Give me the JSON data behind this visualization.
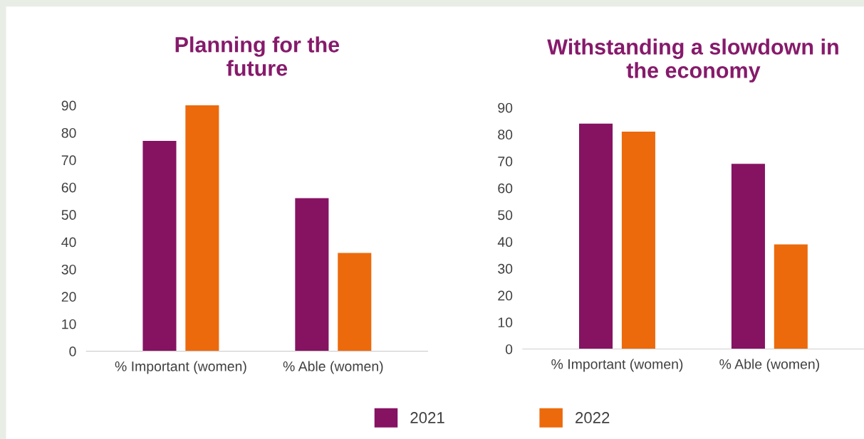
{
  "chart_data": [
    {
      "type": "bar",
      "title": "Planning for the\nfuture",
      "categories": [
        "% Important (women)",
        "% Able (women)"
      ],
      "series": [
        {
          "name": "2021",
          "color": "#861262",
          "values": [
            77,
            56
          ]
        },
        {
          "name": "2022",
          "color": "#ec6a0c",
          "values": [
            90,
            36
          ]
        }
      ],
      "ylim": [
        0,
        90
      ],
      "yticks": [
        0,
        10,
        20,
        30,
        40,
        50,
        60,
        70,
        80,
        90
      ],
      "grid": false,
      "legend": "bottom"
    },
    {
      "type": "bar",
      "title": "Withstanding a slowdown in\nthe economy",
      "categories": [
        "% Important (women)",
        "% Able (women)"
      ],
      "series": [
        {
          "name": "2021",
          "color": "#861262",
          "values": [
            84,
            69
          ]
        },
        {
          "name": "2022",
          "color": "#ec6a0c",
          "values": [
            81,
            39
          ]
        }
      ],
      "ylim": [
        0,
        90
      ],
      "yticks": [
        0,
        10,
        20,
        30,
        40,
        50,
        60,
        70,
        80,
        90
      ],
      "grid": false,
      "legend": "bottom"
    }
  ]
}
